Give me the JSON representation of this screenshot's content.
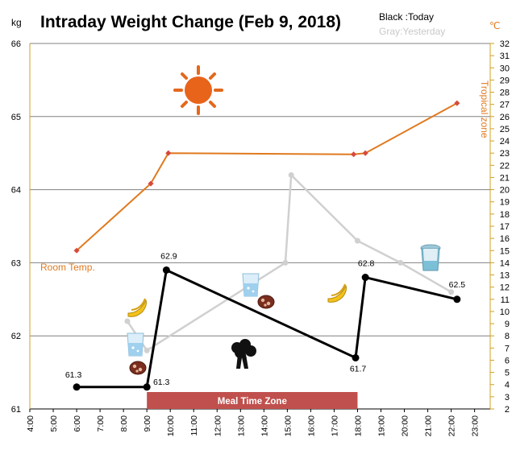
{
  "chart_data": {
    "type": "line",
    "title": "Intraday Weight Change (Feb 9, 2018)",
    "legend": {
      "today": "Black :Today",
      "yesterday": "Gray:Yesterday"
    },
    "left_axis": {
      "unit": "kg",
      "ylim": [
        61,
        66
      ],
      "ticks": [
        "61",
        "62",
        "63",
        "64",
        "65",
        "66"
      ]
    },
    "right_axis": {
      "unit": "℃",
      "ylim": [
        2,
        32
      ],
      "ticks": [
        "2",
        "3",
        "4",
        "5",
        "6",
        "7",
        "8",
        "9",
        "10",
        "11",
        "12",
        "13",
        "14",
        "15",
        "16",
        "17",
        "18",
        "19",
        "20",
        "21",
        "22",
        "23",
        "24",
        "25",
        "26",
        "27",
        "28",
        "29",
        "30",
        "31",
        "32"
      ],
      "label": "Tropical zone"
    },
    "x_axis": {
      "ticks": [
        "4:00",
        "5:00",
        "6:00",
        "7:00",
        "8:00",
        "9:00",
        "10:00",
        "11:00",
        "12:00",
        "13:00",
        "14:00",
        "15:00",
        "16:00",
        "17:00",
        "18:00",
        "19:00",
        "20:00",
        "21:00",
        "22:00",
        "23:00"
      ]
    },
    "grid": true,
    "series": [
      {
        "name": "Today",
        "color": "#000000",
        "axis": "left",
        "points": [
          {
            "x": "6:00",
            "y": 61.3,
            "label": "61.3"
          },
          {
            "x": "9:00",
            "y": 61.3,
            "label": "61.3"
          },
          {
            "x": "9:50",
            "y": 62.9,
            "label": "62.9"
          },
          {
            "x": "17:55",
            "y": 61.7,
            "label": "61.7"
          },
          {
            "x": "18:20",
            "y": 62.8,
            "label": "62.8"
          },
          {
            "x": "22:15",
            "y": 62.5,
            "label": "62.5"
          }
        ]
      },
      {
        "name": "Yesterday",
        "color": "#d0d0d0",
        "axis": "left",
        "points": [
          {
            "x": "8:10",
            "y": 62.2
          },
          {
            "x": "9:00",
            "y": 61.8
          },
          {
            "x": "14:55",
            "y": 63.0
          },
          {
            "x": "15:10",
            "y": 64.2
          },
          {
            "x": "18:00",
            "y": 63.3
          },
          {
            "x": "19:50",
            "y": 63.0
          },
          {
            "x": "22:00",
            "y": 62.6
          }
        ]
      },
      {
        "name": "Room Temp.",
        "color": "#e07a1f",
        "axis": "right",
        "points": [
          {
            "x": "6:00",
            "y": 15
          },
          {
            "x": "9:10",
            "y": 20.5
          },
          {
            "x": "9:55",
            "y": 23
          },
          {
            "x": "17:50",
            "y": 22.9
          },
          {
            "x": "18:20",
            "y": 23
          },
          {
            "x": "22:15",
            "y": 27.1
          }
        ]
      }
    ],
    "annotations": {
      "room_temp_label": "Room Temp.",
      "meal_zone": {
        "label": "Meal Time Zone",
        "from": "9:00",
        "to": "18:00",
        "color": "#c0504d"
      }
    },
    "icons": [
      "sun-icon",
      "banana-icon",
      "water-glass-icon",
      "meat-icon",
      "broccoli-icon",
      "trash-bin-icon"
    ]
  }
}
